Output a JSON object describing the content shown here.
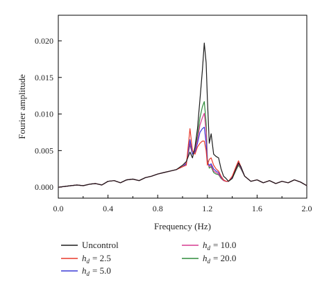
{
  "chart_data": {
    "type": "line",
    "xlabel": "Frequency (Hz)",
    "ylabel": "Fourier amplitude",
    "xlim": [
      0.0,
      2.0
    ],
    "ylim": [
      -0.0015,
      0.0235
    ],
    "x_ticks": [
      "0.0",
      "0.4",
      "0.8",
      "1.2",
      "1.6",
      "2.0"
    ],
    "y_ticks": [
      "0.000",
      "0.005",
      "0.010",
      "0.015",
      "0.020"
    ],
    "grid": false,
    "legend_position": "bottom",
    "x": [
      0.0,
      0.05,
      0.1,
      0.15,
      0.2,
      0.25,
      0.3,
      0.35,
      0.4,
      0.45,
      0.5,
      0.55,
      0.6,
      0.65,
      0.7,
      0.75,
      0.8,
      0.85,
      0.9,
      0.95,
      1.0,
      1.03,
      1.06,
      1.08,
      1.1,
      1.12,
      1.14,
      1.16,
      1.175,
      1.19,
      1.2,
      1.215,
      1.23,
      1.25,
      1.27,
      1.29,
      1.31,
      1.33,
      1.35,
      1.37,
      1.4,
      1.43,
      1.45,
      1.47,
      1.5,
      1.55,
      1.6,
      1.65,
      1.7,
      1.75,
      1.8,
      1.85,
      1.9,
      1.95,
      2.0
    ],
    "series": [
      {
        "name": "Uncontrol",
        "color": "#1a1a1a",
        "values": [
          0.0,
          0.0001,
          0.0002,
          0.0003,
          0.0002,
          0.0004,
          0.0005,
          0.0003,
          0.0008,
          0.0009,
          0.0006,
          0.001,
          0.0011,
          0.0009,
          0.0013,
          0.0015,
          0.0018,
          0.002,
          0.0022,
          0.0024,
          0.003,
          0.0035,
          0.0048,
          0.004,
          0.0055,
          0.008,
          0.012,
          0.016,
          0.0197,
          0.017,
          0.012,
          0.006,
          0.0073,
          0.0045,
          0.0042,
          0.004,
          0.0025,
          0.0015,
          0.0012,
          0.0008,
          0.0012,
          0.0025,
          0.0033,
          0.0028,
          0.0015,
          0.0008,
          0.001,
          0.0006,
          0.0009,
          0.0005,
          0.0008,
          0.0006,
          0.001,
          0.0007,
          0.0002
        ]
      },
      {
        "name": "h_d = 2.5",
        "sub": "d",
        "value_label": "= 2.5",
        "color": "#e8392a",
        "values": [
          0.0,
          0.0001,
          0.0002,
          0.0003,
          0.0002,
          0.0004,
          0.0005,
          0.0003,
          0.0008,
          0.0009,
          0.0006,
          0.001,
          0.0011,
          0.0009,
          0.0013,
          0.0015,
          0.0018,
          0.002,
          0.0022,
          0.0024,
          0.0028,
          0.003,
          0.008,
          0.005,
          0.0045,
          0.0055,
          0.006,
          0.0063,
          0.0063,
          0.005,
          0.003,
          0.0038,
          0.004,
          0.003,
          0.0025,
          0.0022,
          0.0015,
          0.001,
          0.0008,
          0.0008,
          0.0015,
          0.0028,
          0.0036,
          0.0028,
          0.0015,
          0.0008,
          0.001,
          0.0006,
          0.0009,
          0.0005,
          0.0008,
          0.0006,
          0.001,
          0.0007,
          0.0002
        ]
      },
      {
        "name": "h_d = 5.0",
        "sub": "d",
        "value_label": "= 5.0",
        "color": "#3a3ad6",
        "values": [
          0.0,
          0.0001,
          0.0002,
          0.0003,
          0.0002,
          0.0004,
          0.0005,
          0.0003,
          0.0008,
          0.0009,
          0.0006,
          0.001,
          0.0011,
          0.0009,
          0.0013,
          0.0015,
          0.0018,
          0.002,
          0.0022,
          0.0024,
          0.0028,
          0.0032,
          0.0065,
          0.0045,
          0.0048,
          0.006,
          0.0075,
          0.008,
          0.0082,
          0.006,
          0.0033,
          0.003,
          0.0032,
          0.0025,
          0.0022,
          0.002,
          0.0014,
          0.001,
          0.0008,
          0.0008,
          0.0014,
          0.0026,
          0.0034,
          0.0027,
          0.0015,
          0.0008,
          0.001,
          0.0006,
          0.0009,
          0.0005,
          0.0008,
          0.0006,
          0.001,
          0.0007,
          0.0002
        ]
      },
      {
        "name": "h_d = 10.0",
        "sub": "d",
        "value_label": "= 10.0",
        "color": "#d6398f",
        "values": [
          0.0,
          0.0001,
          0.0002,
          0.0003,
          0.0002,
          0.0004,
          0.0005,
          0.0003,
          0.0008,
          0.0009,
          0.0006,
          0.001,
          0.0011,
          0.0009,
          0.0013,
          0.0015,
          0.0018,
          0.002,
          0.0022,
          0.0024,
          0.0028,
          0.0033,
          0.006,
          0.0045,
          0.005,
          0.0065,
          0.0085,
          0.0095,
          0.0101,
          0.0075,
          0.0035,
          0.0028,
          0.003,
          0.0022,
          0.002,
          0.0018,
          0.0013,
          0.0009,
          0.0008,
          0.0008,
          0.0013,
          0.0024,
          0.0032,
          0.0026,
          0.0015,
          0.0008,
          0.001,
          0.0006,
          0.0009,
          0.0005,
          0.0008,
          0.0006,
          0.001,
          0.0007,
          0.0002
        ]
      },
      {
        "name": "h_d = 20.0",
        "sub": "d",
        "value_label": "= 20.0",
        "color": "#2e8b3a",
        "values": [
          0.0,
          0.0001,
          0.0002,
          0.0003,
          0.0002,
          0.0004,
          0.0005,
          0.0003,
          0.0008,
          0.0009,
          0.0006,
          0.001,
          0.0011,
          0.0009,
          0.0013,
          0.0015,
          0.0018,
          0.002,
          0.0022,
          0.0024,
          0.0028,
          0.0033,
          0.0058,
          0.0045,
          0.0052,
          0.007,
          0.0095,
          0.011,
          0.0117,
          0.0088,
          0.0038,
          0.0026,
          0.0028,
          0.002,
          0.0018,
          0.0017,
          0.0012,
          0.0009,
          0.0008,
          0.0008,
          0.0012,
          0.0023,
          0.003,
          0.0025,
          0.0015,
          0.0008,
          0.001,
          0.0006,
          0.0009,
          0.0005,
          0.0008,
          0.0006,
          0.001,
          0.0007,
          0.0002
        ]
      }
    ]
  },
  "legend": {
    "uncontrol": "Uncontrol",
    "h_symbol": "h",
    "h_sub": "d",
    "h25": "= 2.5",
    "h50": "= 5.0",
    "h100": "= 10.0",
    "h200": "= 20.0"
  }
}
